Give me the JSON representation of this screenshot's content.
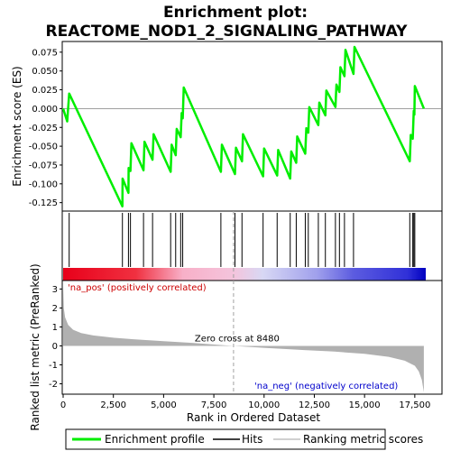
{
  "chart_data": {
    "type": "line",
    "title_line1": "Enrichment plot:",
    "title_line2": "REACTOME_NOD1_2_SIGNALING_PATHWAY",
    "xlabel": "Rank in Ordered Dataset",
    "ylabel_top": "Enrichment score (ES)",
    "ylabel_bottom": "Ranked list metric (PreRanked)",
    "xlim": [
      0,
      18000
    ],
    "x_ticks": [
      0,
      2500,
      5000,
      7500,
      10000,
      12500,
      15000,
      17500
    ],
    "x_tick_labels": [
      "0",
      "2,500",
      "5,000",
      "7,500",
      "10,000",
      "12,500",
      "15,000",
      "17,500"
    ],
    "es_ylim": [
      -0.135,
      0.088
    ],
    "es_ticks": [
      0.075,
      0.05,
      0.025,
      0.0,
      -0.025,
      -0.05,
      -0.075,
      -0.1,
      -0.125
    ],
    "es_tick_labels": [
      "0.075",
      "0.050",
      "0.025",
      "0.000",
      "-0.025",
      "-0.050",
      "-0.075",
      "-0.100",
      "-0.125"
    ],
    "metric_ylim": [
      -2.5,
      3.4
    ],
    "metric_ticks": [
      3,
      2,
      1,
      0,
      -1,
      -2
    ],
    "metric_tick_labels": [
      "3",
      "2",
      "1",
      "0",
      "-1",
      "-2"
    ],
    "es_curve": [
      [
        0,
        0.0
      ],
      [
        200,
        -0.017
      ],
      [
        300,
        0.02
      ],
      [
        2950,
        -0.13
      ],
      [
        2960,
        -0.093
      ],
      [
        3250,
        -0.112
      ],
      [
        3260,
        -0.079
      ],
      [
        3350,
        -0.083
      ],
      [
        3400,
        -0.046
      ],
      [
        4000,
        -0.082
      ],
      [
        4050,
        -0.044
      ],
      [
        4450,
        -0.068
      ],
      [
        4500,
        -0.034
      ],
      [
        5350,
        -0.084
      ],
      [
        5400,
        -0.048
      ],
      [
        5600,
        -0.062
      ],
      [
        5650,
        -0.027
      ],
      [
        5850,
        -0.038
      ],
      [
        5900,
        -0.006
      ],
      [
        5950,
        -0.013
      ],
      [
        6000,
        0.028
      ],
      [
        7850,
        -0.084
      ],
      [
        7900,
        -0.048
      ],
      [
        8550,
        -0.087
      ],
      [
        8600,
        -0.052
      ],
      [
        8900,
        -0.07
      ],
      [
        8950,
        -0.034
      ],
      [
        9950,
        -0.09
      ],
      [
        10000,
        -0.053
      ],
      [
        10650,
        -0.089
      ],
      [
        10700,
        -0.055
      ],
      [
        11300,
        -0.093
      ],
      [
        11350,
        -0.057
      ],
      [
        11600,
        -0.072
      ],
      [
        11650,
        -0.037
      ],
      [
        12050,
        -0.06
      ],
      [
        12100,
        -0.026
      ],
      [
        12200,
        -0.032
      ],
      [
        12250,
        0.002
      ],
      [
        12700,
        -0.022
      ],
      [
        12750,
        0.008
      ],
      [
        13050,
        -0.009
      ],
      [
        13100,
        0.024
      ],
      [
        13550,
        0.002
      ],
      [
        13600,
        0.032
      ],
      [
        13750,
        0.022
      ],
      [
        13800,
        0.055
      ],
      [
        14000,
        0.043
      ],
      [
        14050,
        0.078
      ],
      [
        14450,
        0.046
      ],
      [
        14500,
        0.082
      ],
      [
        17250,
        -0.07
      ],
      [
        17300,
        -0.035
      ],
      [
        17400,
        -0.04
      ],
      [
        17450,
        -0.003
      ],
      [
        17480,
        -0.008
      ],
      [
        17500,
        0.03
      ],
      [
        17950,
        0.0
      ]
    ],
    "hits": [
      300,
      2950,
      3250,
      3350,
      4000,
      4450,
      5350,
      5600,
      5850,
      5950,
      7850,
      8550,
      8900,
      9950,
      10650,
      11300,
      11600,
      12050,
      12200,
      12700,
      13050,
      13550,
      13750,
      14000,
      14450,
      17250,
      17400,
      17450,
      17500
    ],
    "metric_curve": [
      [
        0,
        3.2
      ],
      [
        30,
        2.0
      ],
      [
        100,
        1.5
      ],
      [
        250,
        1.1
      ],
      [
        500,
        0.85
      ],
      [
        900,
        0.68
      ],
      [
        1500,
        0.55
      ],
      [
        2500,
        0.43
      ],
      [
        3500,
        0.35
      ],
      [
        5000,
        0.25
      ],
      [
        6500,
        0.15
      ],
      [
        8480,
        0.0
      ],
      [
        10000,
        -0.1
      ],
      [
        12000,
        -0.22
      ],
      [
        13500,
        -0.3
      ],
      [
        15000,
        -0.42
      ],
      [
        16200,
        -0.58
      ],
      [
        17000,
        -0.78
      ],
      [
        17500,
        -1.05
      ],
      [
        17700,
        -1.35
      ],
      [
        17850,
        -1.8
      ],
      [
        17950,
        -2.45
      ]
    ],
    "zero_cross": 8480,
    "zero_cross_label": "Zero cross at 8480",
    "pos_label": "'na_pos' (positively correlated)",
    "neg_label": "'na_neg' (negatively correlated)",
    "legend": [
      {
        "label": "Enrichment profile",
        "color": "#00ee00"
      },
      {
        "label": "Hits",
        "color": "#000000"
      },
      {
        "label": "Ranking metric scores",
        "color": "#c0c0c0"
      }
    ],
    "colors": {
      "es_line": "#00ee00",
      "pos_label": "#cc0000",
      "neg_label": "#0000cc",
      "metric_fill": "#b0b0b0"
    }
  }
}
